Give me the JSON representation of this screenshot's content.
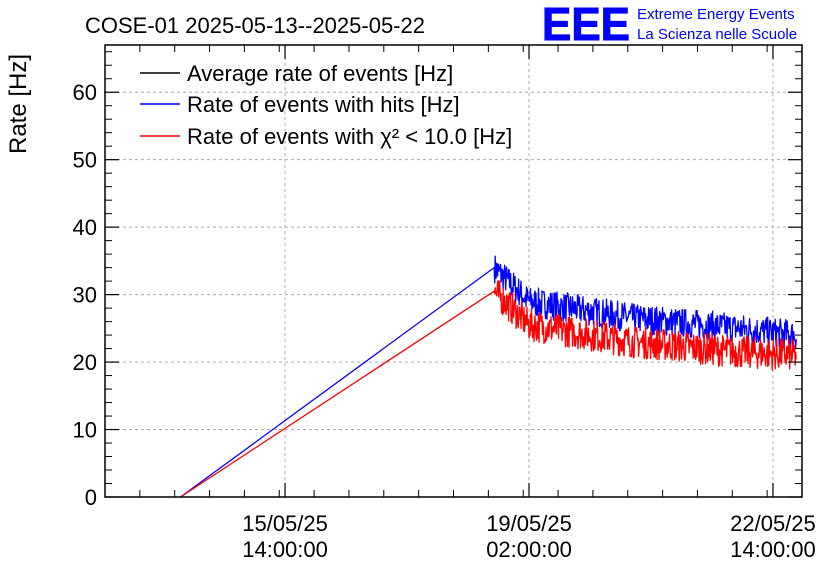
{
  "chart_data": {
    "type": "line",
    "title": "COSE-01 2025-05-13--2025-05-22",
    "ylabel": "Rate [Hz]",
    "xlabel": "",
    "ylim": [
      0,
      67
    ],
    "y_ticks": [
      0,
      10,
      20,
      30,
      40,
      50,
      60
    ],
    "x_ticks": [
      {
        "line1": "15/05/25",
        "line2": "14:00:00"
      },
      {
        "line1": "19/05/25",
        "line2": "02:00:00"
      },
      {
        "line1": "22/05/25",
        "line2": "14:00:00"
      }
    ],
    "grid": true,
    "legend_position": "top-left",
    "series": [
      {
        "name": "Average rate of events [Hz]",
        "color": "#000000",
        "x": [
          "2025-05-14 02:00",
          "2025-05-18 14:00",
          "2025-05-19 02:00",
          "2025-05-20 14:00",
          "2025-05-22 02:00",
          "2025-05-22 22:00"
        ],
        "values": [
          0,
          34,
          29,
          26.5,
          25,
          24
        ]
      },
      {
        "name": "Rate of events with hits [Hz]",
        "color": "#0000ff",
        "x": [
          "2025-05-14 02:00",
          "2025-05-18 14:00",
          "2025-05-19 02:00",
          "2025-05-20 14:00",
          "2025-05-22 02:00",
          "2025-05-22 22:00"
        ],
        "values": [
          0,
          34,
          29,
          26.5,
          25,
          24
        ]
      },
      {
        "name": "Rate of events with χ² < 10.0 [Hz]",
        "color": "#ff0000",
        "x": [
          "2025-05-14 02:00",
          "2025-05-18 14:00",
          "2025-05-19 02:00",
          "2025-05-20 14:00",
          "2025-05-22 02:00",
          "2025-05-22 22:00"
        ],
        "values": [
          0,
          30.5,
          25.5,
          23,
          21.5,
          21
        ]
      }
    ]
  },
  "logo": {
    "text": "EEE",
    "line1": "Extreme Energy Events",
    "line2": "La Scienza nelle Scuole",
    "color": "#0000ff"
  }
}
